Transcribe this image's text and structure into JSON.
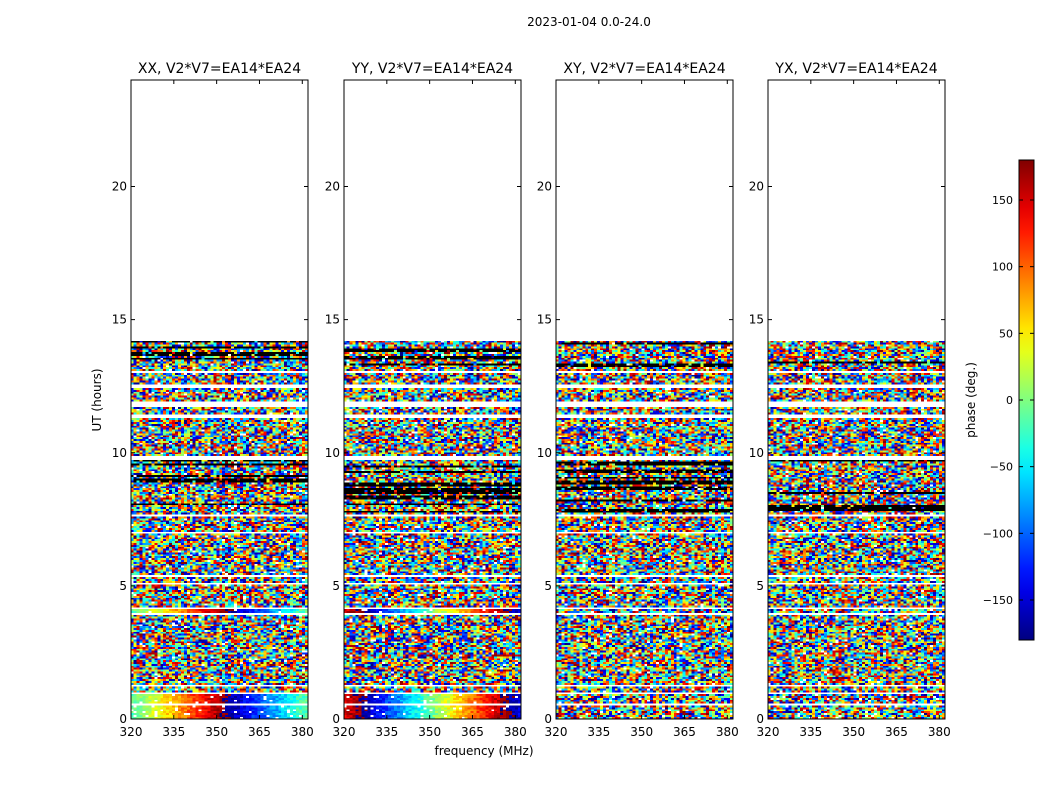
{
  "chart_data": {
    "type": "heatmap",
    "suptitle": "2023-01-04 0.0-24.0",
    "xlabel": "frequency (MHz)",
    "ylabel": "UT (hours)",
    "xlim": [
      320,
      382
    ],
    "ylim": [
      0,
      24
    ],
    "xticks": [
      320,
      335,
      350,
      365,
      380
    ],
    "yticks": [
      0,
      5,
      10,
      15,
      20
    ],
    "colorbar": {
      "label": "phase (deg.)",
      "range": [
        -180,
        180
      ],
      "ticks": [
        150,
        100,
        50,
        0,
        -50,
        -100,
        -150
      ],
      "tick_labels": [
        "150",
        "100",
        "50",
        "0",
        "−50",
        "−100",
        "−150"
      ],
      "colormap": "jet",
      "colors": [
        "#00007f",
        "#0000ff",
        "#007fff",
        "#00ffff",
        "#7fff7f",
        "#ffff00",
        "#ff7f00",
        "#ff0000",
        "#7f0000"
      ]
    },
    "data_time_range": [
      0.0,
      14.2
    ],
    "panels": [
      {
        "title": "XX, V2*V7=EA14*EA24",
        "polarization": "XX",
        "baseline": "V2*V7=EA14*EA24"
      },
      {
        "title": "YY, V2*V7=EA14*EA24",
        "polarization": "YY",
        "baseline": "V2*V7=EA14*EA24"
      },
      {
        "title": "XY, V2*V7=EA14*EA24",
        "polarization": "XY",
        "baseline": "V2*V7=EA14*EA24"
      },
      {
        "title": "YX, V2*V7=EA14*EA24",
        "polarization": "YX",
        "baseline": "V2*V7=EA14*EA24"
      }
    ],
    "flagged_gaps_hours": [
      [
        0.52,
        0.58
      ],
      [
        0.92,
        1.02
      ],
      [
        1.22,
        1.3
      ],
      [
        2.95,
        3.0
      ],
      [
        3.88,
        3.98
      ],
      [
        4.12,
        4.22
      ],
      [
        5.02,
        5.08
      ],
      [
        5.35,
        5.42
      ],
      [
        5.88,
        5.92
      ],
      [
        6.98,
        7.05
      ],
      [
        7.6,
        7.7
      ],
      [
        9.72,
        9.85
      ],
      [
        11.32,
        11.42
      ],
      [
        11.68,
        11.95
      ],
      [
        12.42,
        12.6
      ],
      [
        13.0,
        13.06
      ]
    ]
  }
}
